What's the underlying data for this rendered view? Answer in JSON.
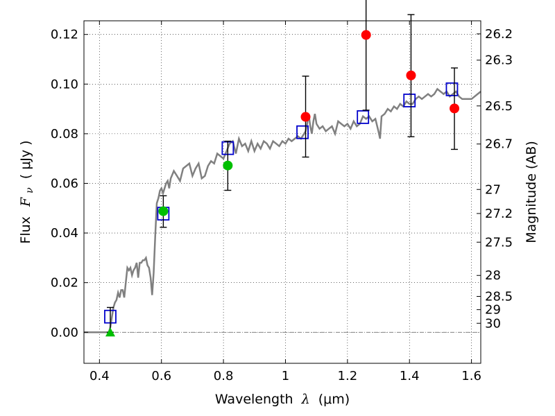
{
  "chart_data": {
    "type": "scatter",
    "xlabel_prefix": "Wavelength",
    "xlabel_symbol": "λ",
    "xlabel_unit": "(μm)",
    "ylabel_prefix": "Flux",
    "ylabel_symbol": "F",
    "ylabel_subscript": "ν",
    "ylabel_unit": "( μJy )",
    "y2label": "Magnitude (AB)",
    "xlim": [
      0.35,
      1.63
    ],
    "ylim": [
      -0.0125,
      0.1255
    ],
    "grid": true,
    "x_ticks": [
      {
        "value": 0.4,
        "label": "0.4"
      },
      {
        "value": 0.6,
        "label": "0.6"
      },
      {
        "value": 0.8,
        "label": "0.8"
      },
      {
        "value": 1.0,
        "label": "1"
      },
      {
        "value": 1.2,
        "label": "1.2"
      },
      {
        "value": 1.4,
        "label": "1.4"
      },
      {
        "value": 1.6,
        "label": "1.6"
      }
    ],
    "y_ticks": [
      {
        "value": 0.0,
        "label": "0.00"
      },
      {
        "value": 0.02,
        "label": "0.02"
      },
      {
        "value": 0.04,
        "label": "0.04"
      },
      {
        "value": 0.06,
        "label": "0.06"
      },
      {
        "value": 0.08,
        "label": "0.08"
      },
      {
        "value": 0.1,
        "label": "0.10"
      },
      {
        "value": 0.12,
        "label": "0.12"
      }
    ],
    "mag_ticks": [
      {
        "label": "26.2"
      },
      {
        "label": "26.3"
      },
      {
        "label": "26.5"
      },
      {
        "label": "26.7"
      },
      {
        "label": "27"
      },
      {
        "label": "27.2"
      },
      {
        "label": "27.5"
      },
      {
        "label": "28"
      },
      {
        "label": "28.5"
      },
      {
        "label": "29"
      },
      {
        "label": "30"
      }
    ],
    "zero_point_mag": 23.9,
    "model_spectrum": [
      [
        0.35,
        0.0
      ],
      [
        0.43,
        0.0
      ],
      [
        0.435,
        0.002
      ],
      [
        0.44,
        0.006
      ],
      [
        0.445,
        0.01
      ],
      [
        0.45,
        0.012
      ],
      [
        0.455,
        0.013
      ],
      [
        0.46,
        0.016
      ],
      [
        0.465,
        0.014
      ],
      [
        0.47,
        0.017
      ],
      [
        0.475,
        0.017
      ],
      [
        0.48,
        0.014
      ],
      [
        0.485,
        0.02
      ],
      [
        0.49,
        0.026
      ],
      [
        0.495,
        0.025
      ],
      [
        0.5,
        0.026
      ],
      [
        0.505,
        0.023
      ],
      [
        0.51,
        0.025
      ],
      [
        0.515,
        0.026
      ],
      [
        0.52,
        0.028
      ],
      [
        0.525,
        0.022
      ],
      [
        0.53,
        0.028
      ],
      [
        0.535,
        0.028
      ],
      [
        0.54,
        0.029
      ],
      [
        0.545,
        0.029
      ],
      [
        0.55,
        0.03
      ],
      [
        0.555,
        0.027
      ],
      [
        0.56,
        0.026
      ],
      [
        0.565,
        0.022
      ],
      [
        0.57,
        0.015
      ],
      [
        0.575,
        0.024
      ],
      [
        0.58,
        0.039
      ],
      [
        0.585,
        0.052
      ],
      [
        0.59,
        0.054
      ],
      [
        0.595,
        0.057
      ],
      [
        0.6,
        0.058
      ],
      [
        0.605,
        0.056
      ],
      [
        0.61,
        0.058
      ],
      [
        0.615,
        0.06
      ],
      [
        0.62,
        0.061
      ],
      [
        0.625,
        0.058
      ],
      [
        0.63,
        0.062
      ],
      [
        0.64,
        0.065
      ],
      [
        0.65,
        0.063
      ],
      [
        0.66,
        0.061
      ],
      [
        0.67,
        0.066
      ],
      [
        0.68,
        0.067
      ],
      [
        0.69,
        0.068
      ],
      [
        0.7,
        0.063
      ],
      [
        0.71,
        0.066
      ],
      [
        0.72,
        0.068
      ],
      [
        0.73,
        0.062
      ],
      [
        0.74,
        0.063
      ],
      [
        0.75,
        0.067
      ],
      [
        0.76,
        0.069
      ],
      [
        0.77,
        0.068
      ],
      [
        0.78,
        0.072
      ],
      [
        0.79,
        0.071
      ],
      [
        0.8,
        0.07
      ],
      [
        0.81,
        0.073
      ],
      [
        0.82,
        0.076
      ],
      [
        0.83,
        0.077
      ],
      [
        0.84,
        0.072
      ],
      [
        0.85,
        0.078
      ],
      [
        0.86,
        0.075
      ],
      [
        0.87,
        0.076
      ],
      [
        0.88,
        0.073
      ],
      [
        0.89,
        0.077
      ],
      [
        0.9,
        0.073
      ],
      [
        0.91,
        0.076
      ],
      [
        0.92,
        0.074
      ],
      [
        0.93,
        0.077
      ],
      [
        0.94,
        0.076
      ],
      [
        0.95,
        0.074
      ],
      [
        0.96,
        0.077
      ],
      [
        0.97,
        0.076
      ],
      [
        0.98,
        0.075
      ],
      [
        0.99,
        0.077
      ],
      [
        1.0,
        0.076
      ],
      [
        1.01,
        0.078
      ],
      [
        1.02,
        0.077
      ],
      [
        1.03,
        0.078
      ],
      [
        1.04,
        0.079
      ],
      [
        1.05,
        0.078
      ],
      [
        1.06,
        0.08
      ],
      [
        1.065,
        0.081
      ],
      [
        1.07,
        0.084
      ],
      [
        1.075,
        0.088
      ],
      [
        1.08,
        0.083
      ],
      [
        1.085,
        0.08
      ],
      [
        1.09,
        0.085
      ],
      [
        1.095,
        0.088
      ],
      [
        1.1,
        0.084
      ],
      [
        1.11,
        0.082
      ],
      [
        1.12,
        0.083
      ],
      [
        1.13,
        0.081
      ],
      [
        1.14,
        0.082
      ],
      [
        1.15,
        0.083
      ],
      [
        1.16,
        0.08
      ],
      [
        1.17,
        0.085
      ],
      [
        1.18,
        0.084
      ],
      [
        1.19,
        0.083
      ],
      [
        1.2,
        0.084
      ],
      [
        1.21,
        0.082
      ],
      [
        1.22,
        0.085
      ],
      [
        1.23,
        0.083
      ],
      [
        1.24,
        0.084
      ],
      [
        1.25,
        0.087
      ],
      [
        1.26,
        0.086
      ],
      [
        1.27,
        0.087
      ],
      [
        1.28,
        0.085
      ],
      [
        1.29,
        0.086
      ],
      [
        1.3,
        0.081
      ],
      [
        1.305,
        0.078
      ],
      [
        1.31,
        0.087
      ],
      [
        1.32,
        0.088
      ],
      [
        1.33,
        0.09
      ],
      [
        1.34,
        0.089
      ],
      [
        1.35,
        0.091
      ],
      [
        1.36,
        0.09
      ],
      [
        1.37,
        0.092
      ],
      [
        1.38,
        0.091
      ],
      [
        1.39,
        0.093
      ],
      [
        1.4,
        0.092
      ],
      [
        1.41,
        0.092
      ],
      [
        1.42,
        0.094
      ],
      [
        1.43,
        0.095
      ],
      [
        1.44,
        0.094
      ],
      [
        1.45,
        0.095
      ],
      [
        1.46,
        0.096
      ],
      [
        1.47,
        0.095
      ],
      [
        1.48,
        0.096
      ],
      [
        1.49,
        0.098
      ],
      [
        1.5,
        0.097
      ],
      [
        1.51,
        0.096
      ],
      [
        1.52,
        0.097
      ],
      [
        1.53,
        0.095
      ],
      [
        1.54,
        0.096
      ],
      [
        1.55,
        0.097
      ],
      [
        1.56,
        0.095
      ],
      [
        1.57,
        0.094
      ],
      [
        1.58,
        0.094
      ],
      [
        1.59,
        0.094
      ],
      [
        1.6,
        0.094
      ],
      [
        1.61,
        0.095
      ],
      [
        1.62,
        0.096
      ],
      [
        1.63,
        0.097
      ]
    ],
    "model_photometry": [
      {
        "x": 0.435,
        "y": 0.0063
      },
      {
        "x": 0.606,
        "y": 0.0478
      },
      {
        "x": 0.814,
        "y": 0.0742
      },
      {
        "x": 1.055,
        "y": 0.0806
      },
      {
        "x": 1.25,
        "y": 0.0867
      },
      {
        "x": 1.4,
        "y": 0.0934
      },
      {
        "x": 1.537,
        "y": 0.0979
      }
    ],
    "observed": [
      {
        "x": 0.435,
        "y": 0.0,
        "yerr_low": 0.0,
        "yerr_high": 0.01,
        "marker": "triangle",
        "color": "#00bf00"
      },
      {
        "x": 0.606,
        "y": 0.0488,
        "yerr_low": 0.0065,
        "yerr_high": 0.0062,
        "marker": "circle",
        "color": "#00bf00"
      },
      {
        "x": 0.814,
        "y": 0.0672,
        "yerr_low": 0.01,
        "yerr_high": 0.0098,
        "marker": "circle",
        "color": "#00bf00"
      },
      {
        "x": 1.065,
        "y": 0.0868,
        "yerr_low": 0.0162,
        "yerr_high": 0.0164,
        "marker": "circle",
        "color": "#ff0000"
      },
      {
        "x": 1.26,
        "y": 0.1198,
        "yerr_low": 0.0303,
        "yerr_high": 0.0302,
        "marker": "circle",
        "color": "#ff0000"
      },
      {
        "x": 1.405,
        "y": 0.1035,
        "yerr_low": 0.0247,
        "yerr_high": 0.0245,
        "marker": "circle",
        "color": "#ff0000"
      },
      {
        "x": 1.545,
        "y": 0.0902,
        "yerr_low": 0.0165,
        "yerr_high": 0.0163,
        "marker": "circle",
        "color": "#ff0000"
      }
    ],
    "colors": {
      "model_line": "#808080",
      "model_box": "#0000cc",
      "errorbar": "#000000",
      "zero_line": "#555555"
    }
  }
}
